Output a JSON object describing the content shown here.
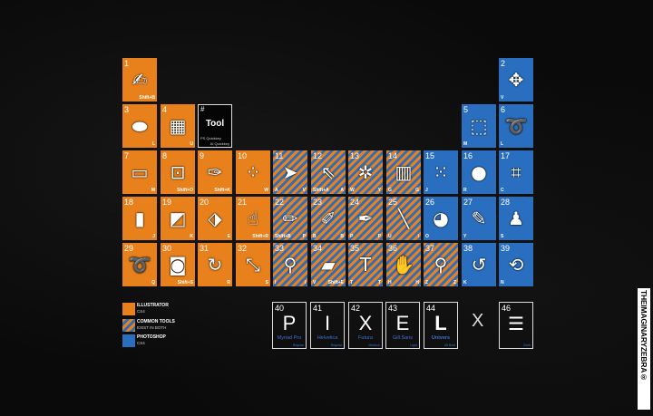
{
  "colors": {
    "illustrator": "#e8801c",
    "photoshop": "#2a6fbf",
    "background": "#0a0a0a"
  },
  "key_cell": {
    "hash": "#",
    "title": "Tool",
    "ps_label": "PS Quickkey",
    "ai_label": "AI Quickkey"
  },
  "elements": [
    {
      "n": "1",
      "type": "ai",
      "icon": "blob-brush-icon",
      "col": 0,
      "row": 0,
      "kr": "Shift+B"
    },
    {
      "n": "2",
      "type": "ps",
      "icon": "move-icon",
      "col": 10,
      "row": 0,
      "kl": "V"
    },
    {
      "n": "3",
      "type": "ai",
      "icon": "ellipse-icon",
      "col": 0,
      "row": 1,
      "kr": "L"
    },
    {
      "n": "4",
      "type": "ai",
      "icon": "live-paint-icon",
      "col": 1,
      "row": 1,
      "kr": "U"
    },
    {
      "n": "5",
      "type": "ps",
      "icon": "marquee-icon",
      "col": 9,
      "row": 1,
      "kl": "M"
    },
    {
      "n": "6",
      "type": "ps",
      "icon": "lasso-icon",
      "col": 10,
      "row": 1,
      "kl": "L"
    },
    {
      "n": "7",
      "type": "ai",
      "icon": "rectangle-icon",
      "col": 0,
      "row": 2,
      "kr": "M"
    },
    {
      "n": "8",
      "type": "ai",
      "icon": "transform-icon",
      "col": 1,
      "row": 2,
      "kr": "Shift+O"
    },
    {
      "n": "9",
      "type": "ai",
      "icon": "knife-icon",
      "col": 2,
      "row": 2,
      "kr": "Shift+K"
    },
    {
      "n": "10",
      "type": "ai",
      "icon": "blend-icon",
      "col": 3,
      "row": 2,
      "kr": "W"
    },
    {
      "n": "11",
      "type": "both",
      "icon": "selection-icon",
      "col": 4,
      "row": 2,
      "kl": "A",
      "kr": "V"
    },
    {
      "n": "12",
      "type": "both",
      "icon": "direct-selection-icon",
      "col": 5,
      "row": 2,
      "kl": "Shift+A",
      "kr": "A"
    },
    {
      "n": "13",
      "type": "both",
      "icon": "magic-wand-icon",
      "col": 6,
      "row": 2,
      "kl": "W",
      "kr": "Y"
    },
    {
      "n": "14",
      "type": "both",
      "icon": "gradient-icon",
      "col": 7,
      "row": 2,
      "kl": "G",
      "kr": "G"
    },
    {
      "n": "15",
      "type": "ps",
      "icon": "healing-brush-icon",
      "col": 8,
      "row": 2,
      "kl": "J"
    },
    {
      "n": "16",
      "type": "ps",
      "icon": "blur-icon",
      "col": 9,
      "row": 2,
      "kl": "R"
    },
    {
      "n": "17",
      "type": "ps",
      "icon": "crop-icon",
      "col": 10,
      "row": 2,
      "kl": "C"
    },
    {
      "n": "18",
      "type": "ai",
      "icon": "graph-icon",
      "col": 0,
      "row": 3,
      "kr": "J"
    },
    {
      "n": "19",
      "type": "ai",
      "icon": "live-paint-bucket-icon",
      "col": 1,
      "row": 3,
      "kr": "K"
    },
    {
      "n": "20",
      "type": "ai",
      "icon": "perspective-grid-icon",
      "col": 2,
      "row": 3,
      "kr": "E"
    },
    {
      "n": "21",
      "type": "ai",
      "icon": "warp-icon",
      "col": 3,
      "row": 3,
      "kr": "Shift+R"
    },
    {
      "n": "22",
      "type": "both",
      "icon": "pencil-icon",
      "col": 4,
      "row": 3,
      "kl": "Shift+B",
      "kr": "P"
    },
    {
      "n": "23",
      "type": "both",
      "icon": "brush-icon",
      "col": 5,
      "row": 3,
      "kl": "B",
      "kr": "B"
    },
    {
      "n": "24",
      "type": "both",
      "icon": "pen-icon",
      "col": 6,
      "row": 3,
      "kl": "P",
      "kr": "P"
    },
    {
      "n": "25",
      "type": "both",
      "icon": "line-icon",
      "col": 7,
      "row": 3,
      "kl": "U",
      "kr": "\\"
    },
    {
      "n": "26",
      "type": "ps",
      "icon": "dodge-icon",
      "col": 8,
      "row": 3,
      "kl": "O"
    },
    {
      "n": "27",
      "type": "ps",
      "icon": "history-brush-icon",
      "col": 9,
      "row": 3,
      "kl": "Y"
    },
    {
      "n": "28",
      "type": "ps",
      "icon": "clone-stamp-icon",
      "col": 10,
      "row": 3,
      "kl": "S"
    },
    {
      "n": "29",
      "type": "ai",
      "icon": "lasso-select-icon",
      "col": 0,
      "row": 4,
      "kr": "Q"
    },
    {
      "n": "30",
      "type": "ai",
      "icon": "symbol-sprayer-icon",
      "col": 1,
      "row": 4,
      "kr": "Shift+S"
    },
    {
      "n": "31",
      "type": "ai",
      "icon": "rotate-icon",
      "col": 2,
      "row": 4,
      "kr": "R"
    },
    {
      "n": "32",
      "type": "ai",
      "icon": "scale-icon",
      "col": 3,
      "row": 4,
      "kr": "S"
    },
    {
      "n": "33",
      "type": "both",
      "icon": "eyedropper-icon",
      "col": 4,
      "row": 4,
      "kl": "I",
      "kr": "I"
    },
    {
      "n": "34",
      "type": "both",
      "icon": "eraser-icon",
      "col": 5,
      "row": 4,
      "kl": "V",
      "kr": "Shift+E"
    },
    {
      "n": "35",
      "type": "both",
      "icon": "type-icon",
      "col": 6,
      "row": 4,
      "kl": "T",
      "kr": "T"
    },
    {
      "n": "36",
      "type": "both",
      "icon": "hand-icon",
      "col": 7,
      "row": 4,
      "kl": "H",
      "kr": "H"
    },
    {
      "n": "37",
      "type": "both",
      "icon": "zoom-icon",
      "col": 8,
      "row": 4,
      "kl": "Z",
      "kr": "Z"
    },
    {
      "n": "38",
      "type": "ps",
      "icon": "3d-rotate-icon",
      "col": 9,
      "row": 4,
      "kl": "K"
    },
    {
      "n": "39",
      "type": "ps",
      "icon": "3d-camera-icon",
      "col": 10,
      "row": 4,
      "kl": "N"
    }
  ],
  "legend": [
    {
      "title": "ILLUSTRATOR",
      "sub": "CS4",
      "type": "ai"
    },
    {
      "title": "COMMON TOOLS",
      "sub": "EXIST IN BOTH",
      "type": "both"
    },
    {
      "title": "PHOTOSHOP",
      "sub": "CS4",
      "type": "ps"
    }
  ],
  "fonts": [
    {
      "n": "40",
      "letter": "P",
      "font": "Myriad Pro",
      "weight": "Regular"
    },
    {
      "n": "41",
      "letter": "I",
      "font": "Helvetica",
      "weight": "Regular"
    },
    {
      "n": "42",
      "letter": "X",
      "font": "Futura",
      "weight": "Medium"
    },
    {
      "n": "43",
      "letter": "E",
      "font": "Gill Sans",
      "weight": "Light"
    },
    {
      "n": "44",
      "letter": "L",
      "font": "Univers",
      "weight": "65 Bold"
    }
  ],
  "x_symbol": "X",
  "zebra_cell": {
    "n": "46",
    "icon": "zebra-icon",
    "label": "Zeeb"
  },
  "logo": "THEIMAGINARYZEBRA®"
}
